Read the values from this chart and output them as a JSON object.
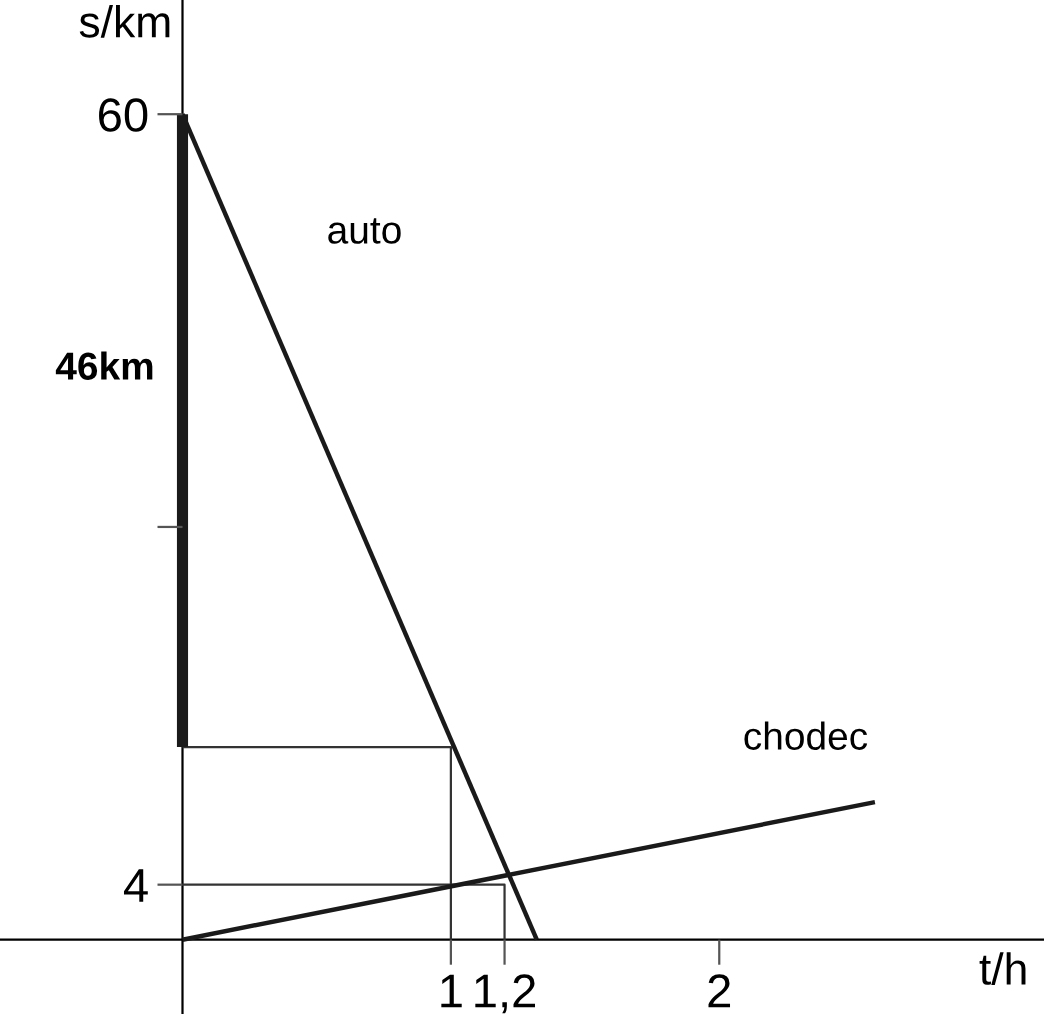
{
  "chart_data": {
    "type": "line",
    "xlabel": "t/h",
    "ylabel": "s/km",
    "xlim": [
      -0.68,
      3.21
    ],
    "ylim": [
      -5.4,
      68.3
    ],
    "xticks": [
      {
        "value": 1,
        "label": "1"
      },
      {
        "value": 1.2,
        "label": "1,2"
      },
      {
        "value": 2,
        "label": "2"
      }
    ],
    "yticks": [
      4,
      {
        "value": 30,
        "label": null
      },
      60
    ],
    "series": [
      {
        "name": "auto",
        "color": "#1a1a1a",
        "x": [
          0,
          1.32
        ],
        "values": [
          60,
          0
        ]
      },
      {
        "name": "chodec",
        "color": "#1a1a1a",
        "x": [
          0,
          2.58
        ],
        "values": [
          0,
          10
        ]
      },
      {
        "color": "#333333",
        "x": [
          0,
          1,
          1
        ],
        "values": [
          14,
          14,
          0
        ]
      },
      {
        "color": "#333333",
        "x": [
          0,
          1.2,
          1.2
        ],
        "values": [
          4,
          4,
          0
        ]
      },
      {
        "color": "#1a1a1a",
        "x": [
          0,
          0
        ],
        "values": [
          14,
          60
        ]
      }
    ],
    "annotations": [
      "46km"
    ],
    "grid": false,
    "legend": false,
    "marker": "none",
    "line_style": "solid"
  }
}
